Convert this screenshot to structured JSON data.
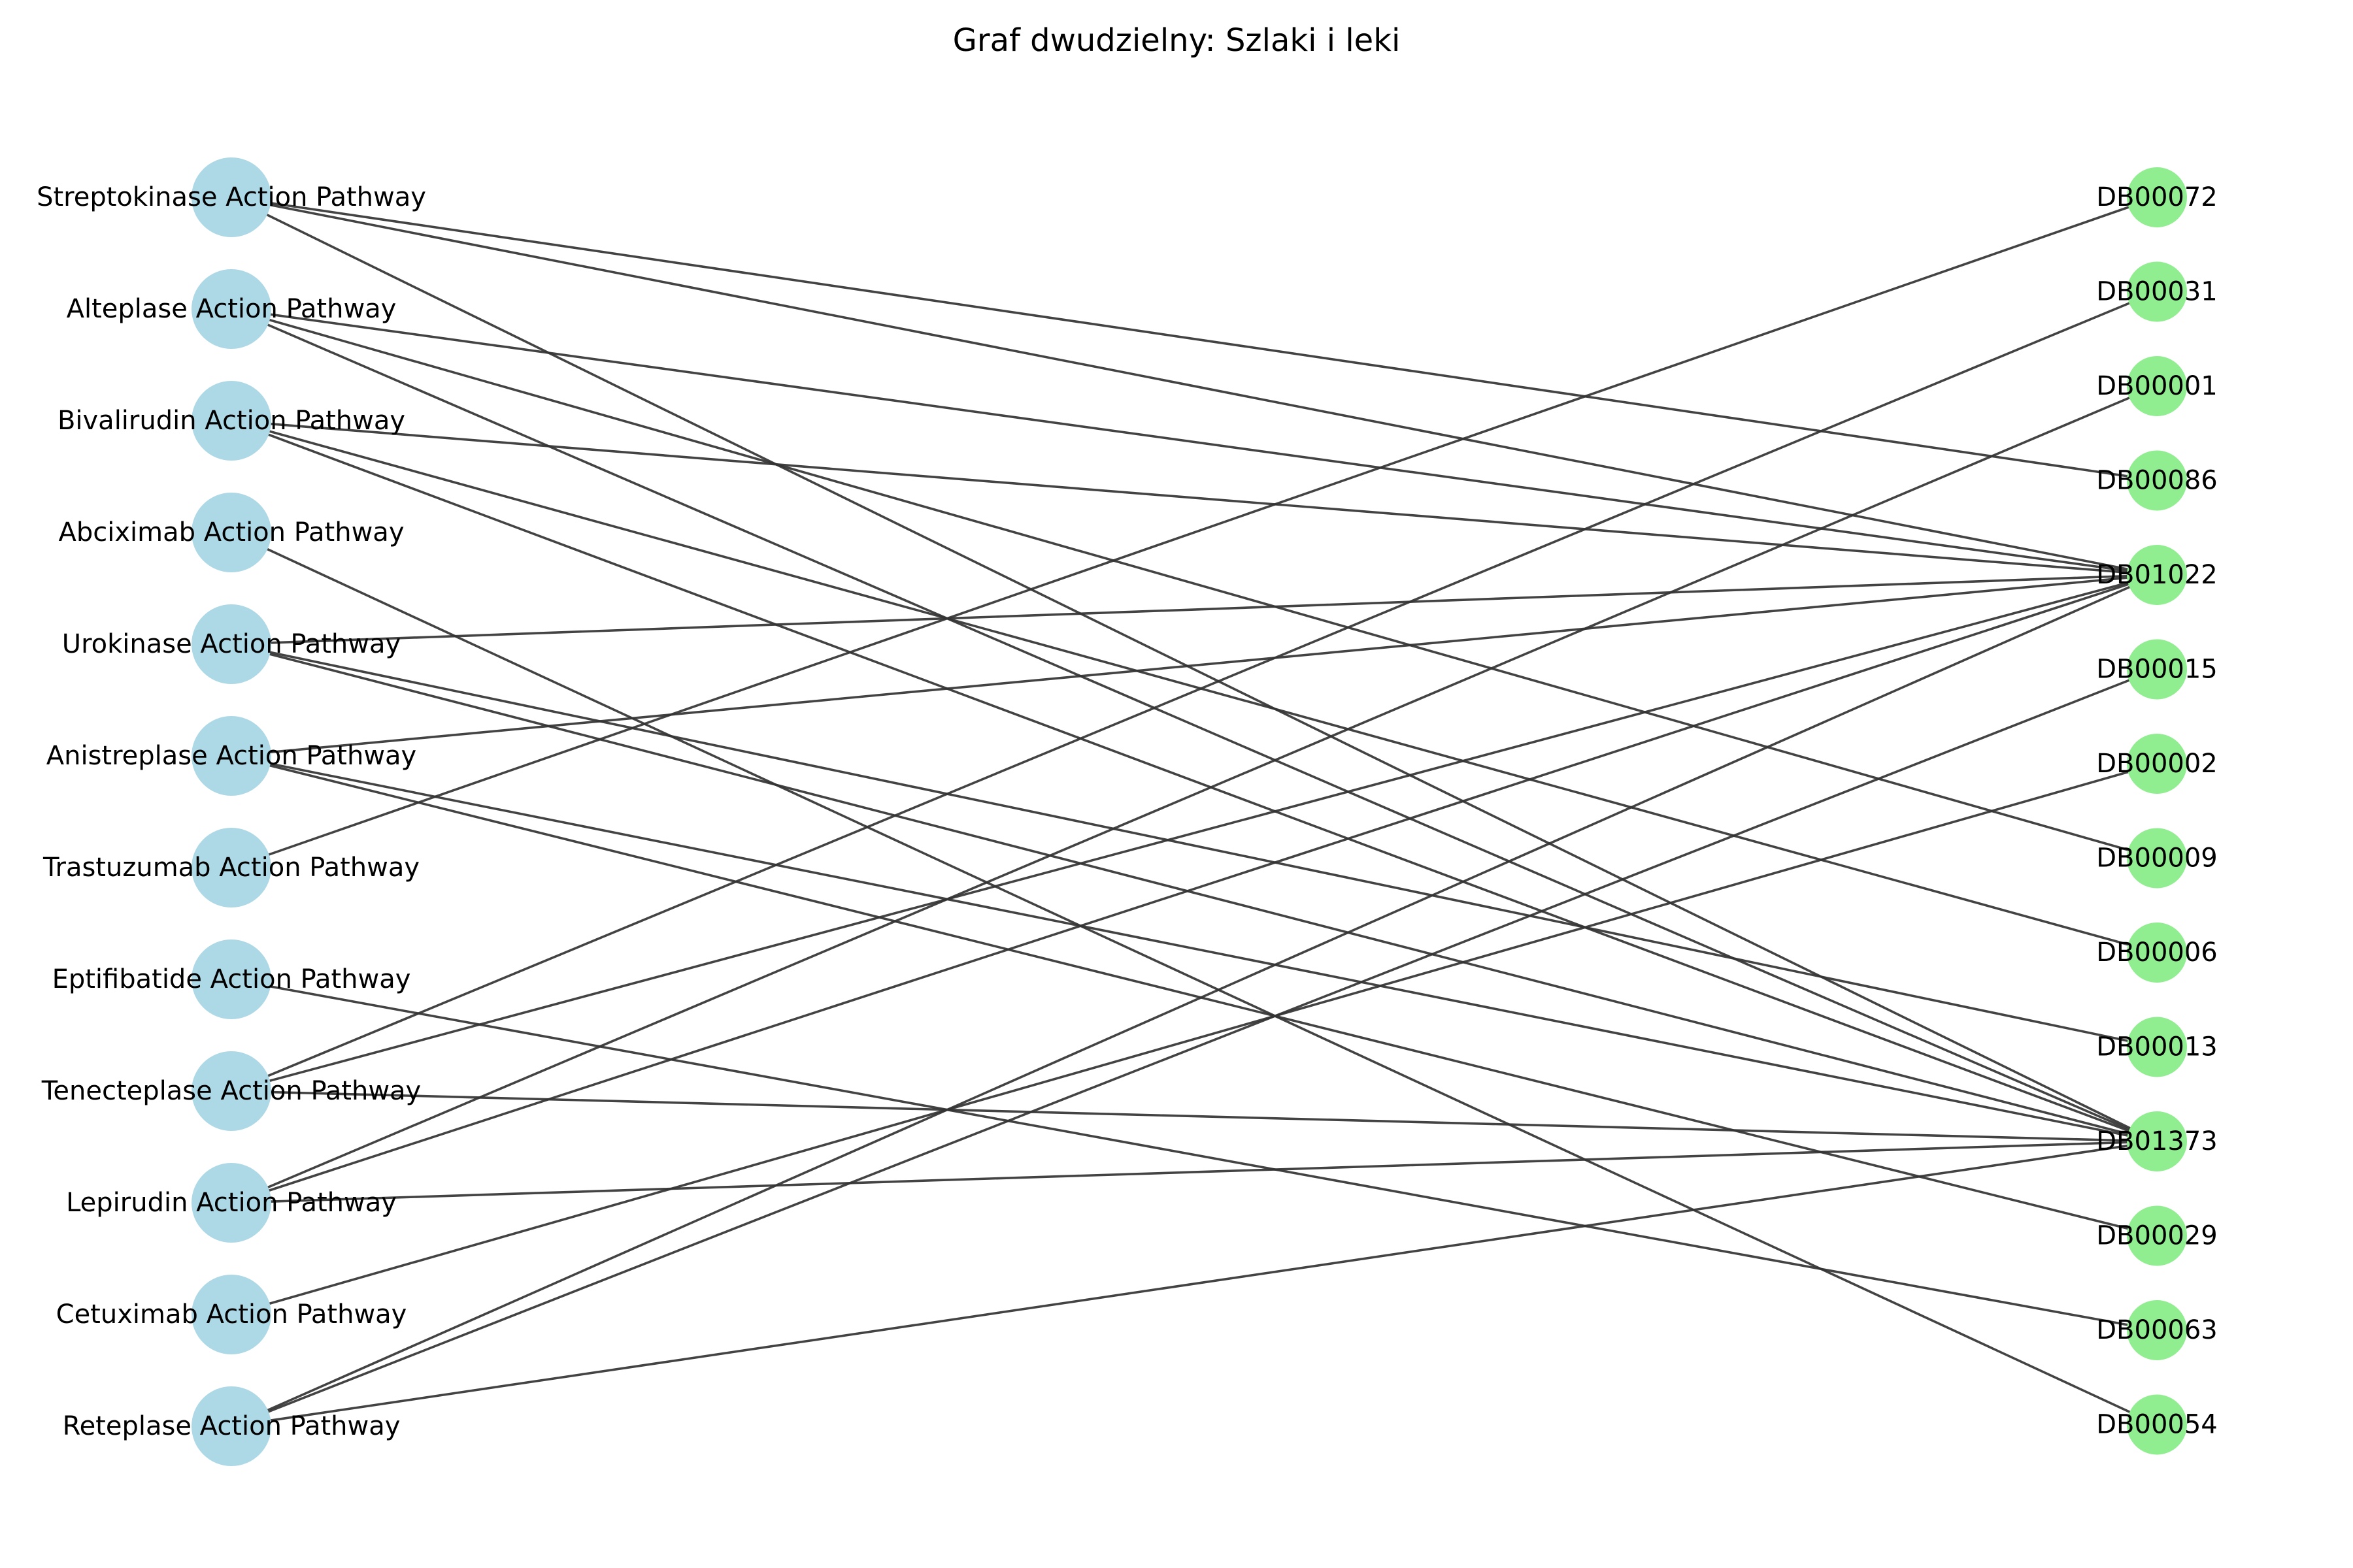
{
  "title": "Graf dwudzielny: Szlaki i leki",
  "colors": {
    "pathway_node": "#add8e6",
    "drug_node": "#90ee90",
    "edge": "#333333",
    "text": "#000000"
  },
  "pathways": [
    "Streptokinase Action Pathway",
    "Alteplase Action Pathway",
    "Bivalirudin Action Pathway",
    "Abciximab Action Pathway",
    "Urokinase Action Pathway",
    "Anistreplase Action Pathway",
    "Trastuzumab Action Pathway",
    "Eptifibatide Action Pathway",
    "Tenecteplase Action Pathway",
    "Lepirudin Action Pathway",
    "Cetuximab Action Pathway",
    "Reteplase Action Pathway"
  ],
  "drugs": [
    "DB00072",
    "DB00031",
    "DB00001",
    "DB00086",
    "DB01022",
    "DB00015",
    "DB00002",
    "DB00009",
    "DB00006",
    "DB00013",
    "DB01373",
    "DB00029",
    "DB00063",
    "DB00054"
  ],
  "edges": [
    [
      "Streptokinase Action Pathway",
      "DB00086"
    ],
    [
      "Streptokinase Action Pathway",
      "DB01022"
    ],
    [
      "Streptokinase Action Pathway",
      "DB01373"
    ],
    [
      "Alteplase Action Pathway",
      "DB01022"
    ],
    [
      "Alteplase Action Pathway",
      "DB00009"
    ],
    [
      "Alteplase Action Pathway",
      "DB01373"
    ],
    [
      "Bivalirudin Action Pathway",
      "DB01022"
    ],
    [
      "Bivalirudin Action Pathway",
      "DB00006"
    ],
    [
      "Bivalirudin Action Pathway",
      "DB01373"
    ],
    [
      "Abciximab Action Pathway",
      "DB00054"
    ],
    [
      "Urokinase Action Pathway",
      "DB01022"
    ],
    [
      "Urokinase Action Pathway",
      "DB00013"
    ],
    [
      "Urokinase Action Pathway",
      "DB01373"
    ],
    [
      "Anistreplase Action Pathway",
      "DB01022"
    ],
    [
      "Anistreplase Action Pathway",
      "DB01373"
    ],
    [
      "Anistreplase Action Pathway",
      "DB00029"
    ],
    [
      "Trastuzumab Action Pathway",
      "DB00072"
    ],
    [
      "Eptifibatide Action Pathway",
      "DB00063"
    ],
    [
      "Tenecteplase Action Pathway",
      "DB00031"
    ],
    [
      "Tenecteplase Action Pathway",
      "DB01022"
    ],
    [
      "Tenecteplase Action Pathway",
      "DB01373"
    ],
    [
      "Lepirudin Action Pathway",
      "DB00001"
    ],
    [
      "Lepirudin Action Pathway",
      "DB01022"
    ],
    [
      "Lepirudin Action Pathway",
      "DB01373"
    ],
    [
      "Cetuximab Action Pathway",
      "DB00002"
    ],
    [
      "Reteplase Action Pathway",
      "DB01022"
    ],
    [
      "Reteplase Action Pathway",
      "DB00015"
    ],
    [
      "Reteplase Action Pathway",
      "DB01373"
    ]
  ]
}
